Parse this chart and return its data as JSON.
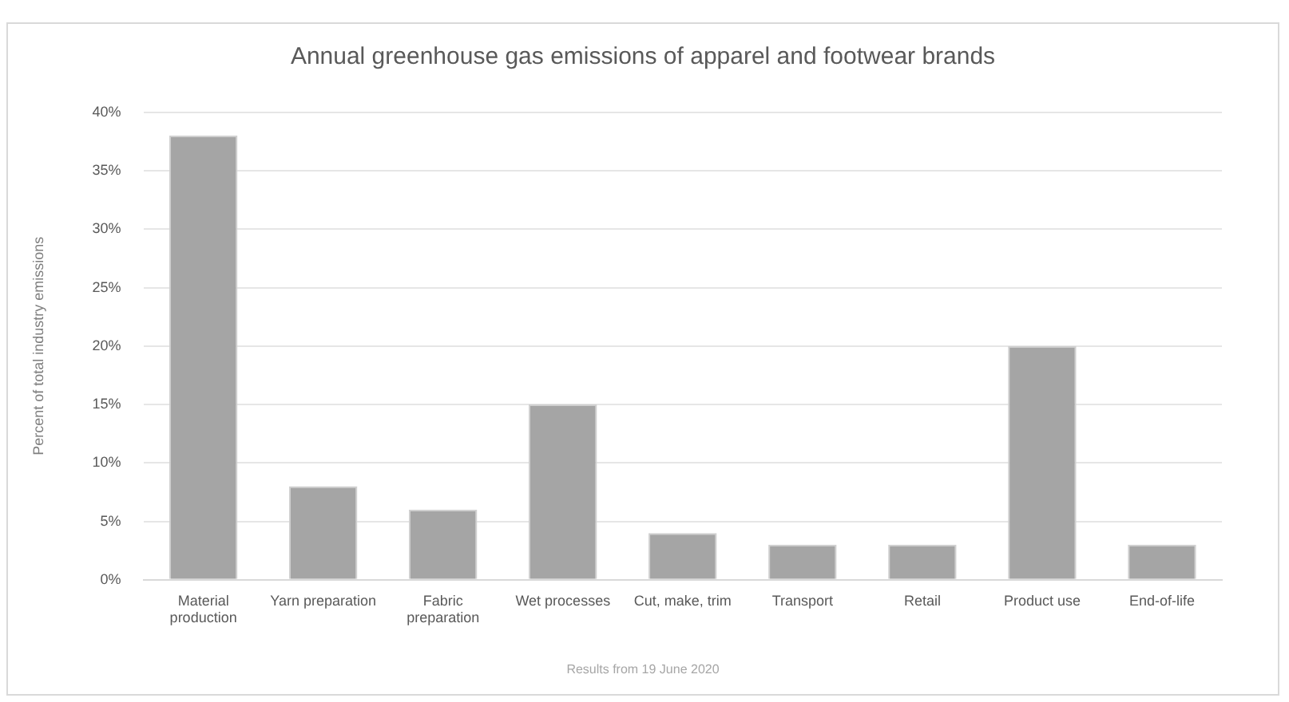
{
  "chart_data": {
    "type": "bar",
    "title": "Annual greenhouse gas emissions of apparel and footwear brands",
    "ylabel": "Percent of total industry emissions",
    "categories": [
      "Material production",
      "Yarn preparation",
      "Fabric preparation",
      "Wet processes",
      "Cut, make, trim",
      "Transport",
      "Retail",
      "Product use",
      "End-of-life"
    ],
    "values": [
      38,
      8,
      6,
      15,
      4,
      3,
      3,
      20,
      3
    ],
    "color": "#a5a5a5",
    "ylim": [
      0,
      40
    ],
    "yticks": [
      {
        "value": 0,
        "label": "0%"
      },
      {
        "value": 5,
        "label": "5%"
      },
      {
        "value": 10,
        "label": "10%"
      },
      {
        "value": 15,
        "label": "15%"
      },
      {
        "value": 20,
        "label": "20%"
      },
      {
        "value": 25,
        "label": "25%"
      },
      {
        "value": 30,
        "label": "30%"
      },
      {
        "value": 35,
        "label": "35%"
      },
      {
        "value": 40,
        "label": "40%"
      }
    ],
    "grid": "y",
    "annotations": [
      "Results from 19 June 2020"
    ]
  }
}
